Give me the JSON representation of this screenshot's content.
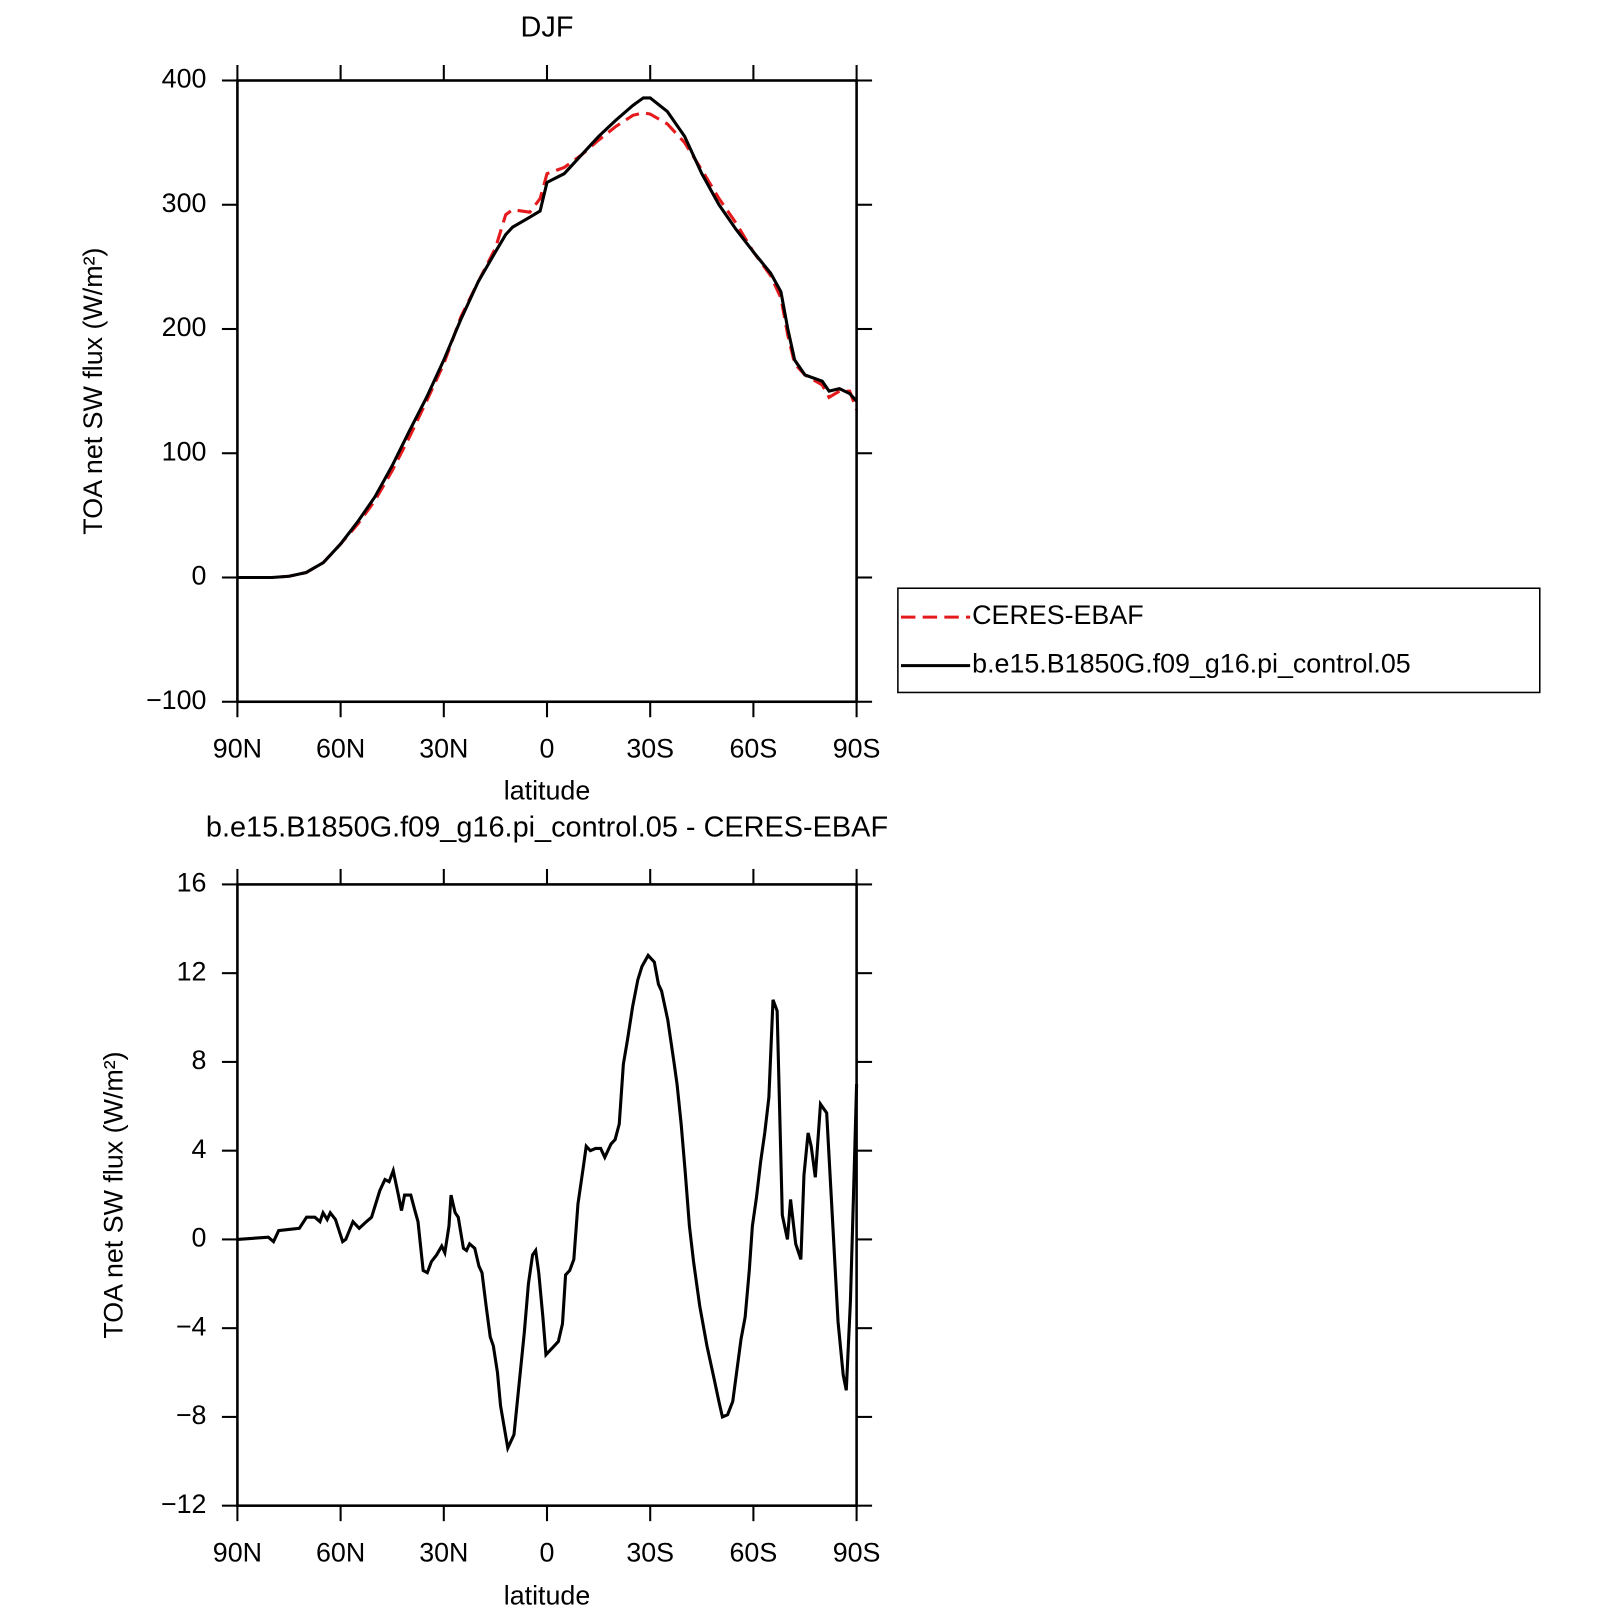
{
  "chart_data": [
    {
      "type": "line",
      "title": "DJF",
      "xlabel": "latitude",
      "ylabel": "TOA net SW flux (W/m²)",
      "x": [
        90,
        85,
        80,
        75,
        70,
        65,
        60,
        55,
        50,
        45,
        40,
        35,
        30,
        25,
        20,
        15,
        12,
        10,
        5,
        2,
        0,
        -5,
        -10,
        -15,
        -20,
        -25,
        -28,
        -30,
        -35,
        -40,
        -45,
        -50,
        -55,
        -60,
        -65,
        -68,
        -70,
        -72,
        -75,
        -80,
        -82,
        -85,
        -88,
        -90
      ],
      "series": [
        {
          "name": "CERES-EBAF",
          "color": "#e41a1c",
          "linestyle": "dashed",
          "values": [
            0,
            0,
            0,
            1,
            4,
            12,
            27,
            43,
            62,
            86,
            113,
            142,
            172,
            210,
            238,
            265,
            292,
            296,
            294,
            305,
            325,
            330,
            340,
            352,
            363,
            372,
            374,
            373,
            365,
            350,
            328,
            305,
            285,
            262,
            243,
            225,
            195,
            172,
            163,
            155,
            145,
            150,
            150,
            135
          ]
        },
        {
          "name": "b.e15.B1850G.f09_g16.pi_control.05",
          "color": "#000000",
          "linestyle": "solid",
          "values": [
            0,
            0,
            0,
            1,
            4,
            12,
            27,
            45,
            65,
            90,
            118,
            145,
            175,
            208,
            238,
            262,
            276,
            282,
            290,
            295,
            318,
            325,
            340,
            355,
            368,
            380,
            386,
            386,
            375,
            355,
            325,
            300,
            280,
            262,
            245,
            230,
            200,
            175,
            163,
            158,
            150,
            152,
            148,
            142
          ]
        }
      ],
      "xlim": [
        90,
        -90
      ],
      "xticks": [
        {
          "value": 90,
          "label": "90N"
        },
        {
          "value": 60,
          "label": "60N"
        },
        {
          "value": 30,
          "label": "30N"
        },
        0,
        {
          "value": -30,
          "label": "30S"
        },
        {
          "value": -60,
          "label": "60S"
        },
        {
          "value": -90,
          "label": "90S"
        }
      ],
      "ylim": [
        -100,
        400
      ],
      "yticks": [
        {
          "value": -100,
          "label": "−100"
        },
        0,
        100,
        200,
        300,
        400
      ],
      "legend": "right"
    },
    {
      "type": "line",
      "title": "b.e15.B1850G.f09_g16.pi_control.05 - CERES-EBAF",
      "xlabel": "latitude",
      "ylabel": "TOA net SW flux (W/m²)",
      "x": [
        90,
        81,
        79.5,
        78,
        72,
        69.9,
        67.5,
        66,
        65.1,
        63.9,
        63,
        61.5,
        59.4,
        58.5,
        56.4,
        54.6,
        52.5,
        51,
        48.6,
        47.1,
        45.9,
        44.7,
        43.2,
        42.3,
        41.4,
        39.6,
        38.4,
        37.5,
        36,
        34.8,
        33.6,
        32.1,
        30.6,
        29.7,
        28.5,
        27.9,
        26.7,
        25.8,
        24.3,
        23.4,
        22.5,
        21,
        19.8,
        18.9,
        17.7,
        16.5,
        15.6,
        14.4,
        13.5,
        11.4,
        9.6,
        8.1,
        6.6,
        5.4,
        4.2,
        3.3,
        2.4,
        1.2,
        0.3,
        -0.9,
        -2.1,
        -3.3,
        -4.5,
        -5.4,
        -6.6,
        -7.8,
        -9,
        -10.5,
        -11.4,
        -12.6,
        -14.1,
        -15.6,
        -16.8,
        -18.6,
        -19.8,
        -21,
        -22.2,
        -23.4,
        -24.9,
        -26.4,
        -27.6,
        -29.4,
        -31.2,
        -32.4,
        -33.3,
        -35.1,
        -36.9,
        -37.8,
        -39,
        -40.2,
        -41.4,
        -42.6,
        -44.4,
        -46.5,
        -48.6,
        -50.1,
        -51,
        -52.5,
        -54,
        -55.2,
        -56.4,
        -57.6,
        -58.8,
        -59.7,
        -60.9,
        -62.1,
        -63.3,
        -64.5,
        -65.7,
        -66.9,
        -68.4,
        -69.9,
        -70.8,
        -72.3,
        -73.8,
        -74.7,
        -75.9,
        -76.8,
        -78,
        -79.5,
        -81.3,
        -83.1,
        -84.6,
        -86.1,
        -87,
        -88.2,
        -89.1,
        -90
      ],
      "series": [
        {
          "name": "b.e15.B1850G.f09_g16.pi_control.05 - CERES-EBAF",
          "color": "#000000",
          "linestyle": "solid",
          "values": [
            0,
            0.1,
            -0.1,
            0.4,
            0.5,
            1.0,
            1.0,
            0.8,
            1.2,
            0.9,
            1.2,
            0.9,
            -0.1,
            0,
            0.8,
            0.5,
            0.8,
            1.0,
            2.2,
            2.7,
            2.6,
            3.1,
            2,
            1.3,
            2,
            2.0,
            1.3,
            0.8,
            -1.4,
            -1.5,
            -1.0,
            -0.7,
            -0.3,
            -0.6,
            0.6,
            2.0,
            1.2,
            1.0,
            -0.4,
            -0.5,
            -0.2,
            -0.4,
            -1.2,
            -1.5,
            -3,
            -4.4,
            -4.8,
            -6,
            -7.5,
            -9.4,
            -8.8,
            -6.5,
            -4.2,
            -2,
            -0.7,
            -0.5,
            -1.5,
            -3.5,
            -5.2,
            -5,
            -4.8,
            -4.6,
            -3.8,
            -1.6,
            -1.4,
            -0.9,
            1.6,
            3.2,
            4.2,
            4.0,
            4.1,
            4.1,
            3.7,
            4.3,
            4.5,
            5.2,
            7.9,
            9.0,
            10.5,
            11.7,
            12.3,
            12.8,
            12.5,
            11.5,
            11.2,
            9.9,
            8,
            7,
            5.2,
            3,
            0.6,
            -1,
            -3,
            -4.8,
            -6.3,
            -7.4,
            -8,
            -7.9,
            -7.3,
            -5.9,
            -4.5,
            -3.5,
            -1.4,
            0.6,
            1.9,
            3.5,
            4.8,
            6.4,
            10.8,
            10.3,
            1.1,
            0,
            1.8,
            -0.2,
            -0.9,
            2.9,
            4.8,
            4.2,
            2.8,
            6.1,
            5.7,
            0.6,
            -3.7,
            -6.1,
            -6.8,
            -2.8,
            2.0,
            7.0
          ]
        }
      ],
      "xlim": [
        90,
        -90
      ],
      "xticks": [
        {
          "value": 90,
          "label": "90N"
        },
        {
          "value": 60,
          "label": "60N"
        },
        {
          "value": 30,
          "label": "30N"
        },
        0,
        {
          "value": -30,
          "label": "30S"
        },
        {
          "value": -60,
          "label": "60S"
        },
        {
          "value": -90,
          "label": "90S"
        }
      ],
      "ylim": [
        -12,
        16
      ],
      "yticks": [
        {
          "value": -12,
          "label": "−12"
        },
        {
          "value": -8,
          "label": "−8"
        },
        {
          "value": -4,
          "label": "−4"
        },
        0,
        4,
        8,
        12,
        16
      ]
    }
  ]
}
